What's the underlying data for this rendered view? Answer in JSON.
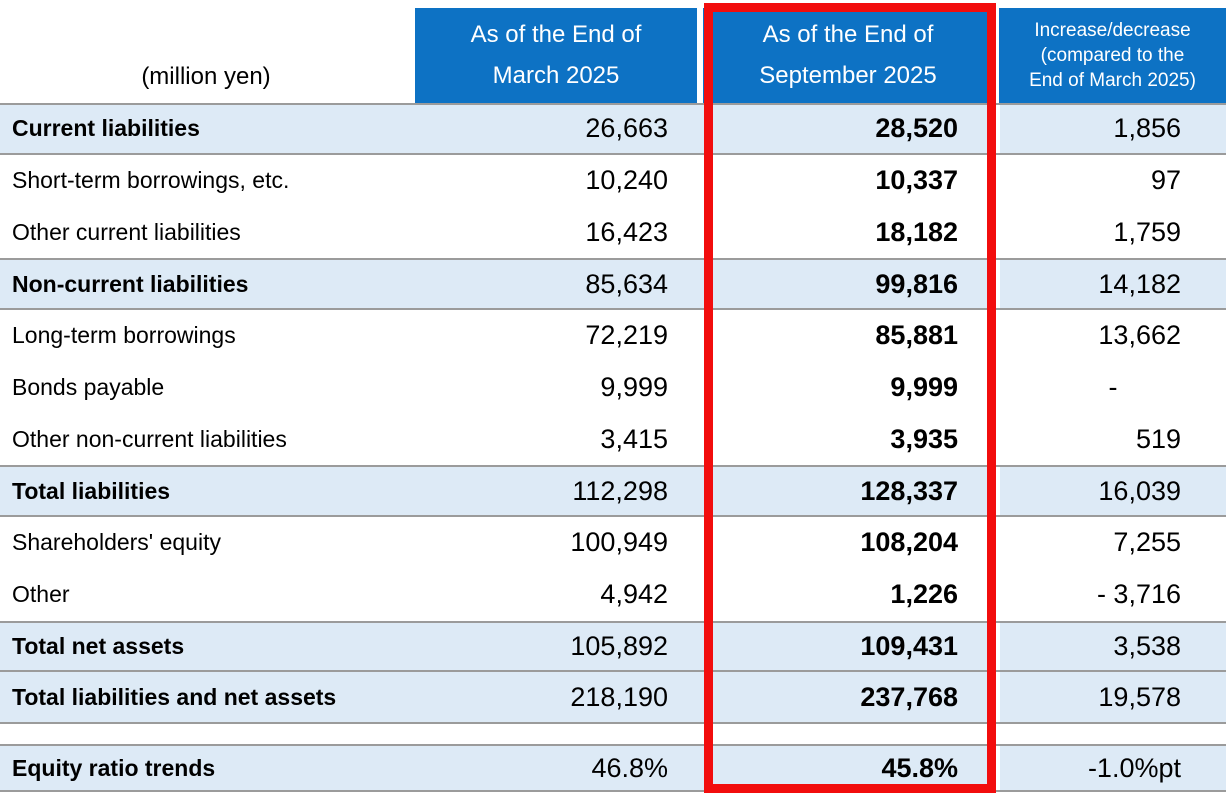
{
  "unit_label": "(million yen)",
  "columns": {
    "march": {
      "line1": "As of the End of",
      "line2": "March 2025"
    },
    "september": {
      "line1": "As of the End of",
      "line2": "September 2025"
    },
    "change": {
      "line1": "Increase/decrease",
      "line2": "(compared to the",
      "line3": "End of March 2025)"
    }
  },
  "rows": [
    {
      "label": "Current liabilities",
      "march": "26,663",
      "september": "28,520",
      "change": "1,856"
    },
    {
      "label": "Short-term borrowings, etc.",
      "march": "10,240",
      "september": "10,337",
      "change": "97"
    },
    {
      "label": "Other current liabilities",
      "march": "16,423",
      "september": "18,182",
      "change": "1,759"
    },
    {
      "label": "Non-current liabilities",
      "march": "85,634",
      "september": "99,816",
      "change": "14,182"
    },
    {
      "label": "Long-term borrowings",
      "march": "72,219",
      "september": "85,881",
      "change": "13,662"
    },
    {
      "label": "Bonds payable",
      "march": "9,999",
      "september": "9,999",
      "change": "-"
    },
    {
      "label": "Other non-current liabilities",
      "march": "3,415",
      "september": "3,935",
      "change": "519"
    },
    {
      "label": "Total liabilities",
      "march": "112,298",
      "september": "128,337",
      "change": "16,039"
    },
    {
      "label": "Shareholders' equity",
      "march": "100,949",
      "september": "108,204",
      "change": "7,255"
    },
    {
      "label": "Other",
      "march": "4,942",
      "september": "1,226",
      "change": "- 3,716"
    },
    {
      "label": "Total net assets",
      "march": "105,892",
      "september": "109,431",
      "change": "3,538"
    },
    {
      "label": "Total liabilities and net assets",
      "march": "218,190",
      "september": "237,768",
      "change": "19,578"
    }
  ],
  "equity_row": {
    "label": "Equity ratio trends",
    "march": "46.8%",
    "september": "45.8%",
    "change": "-1.0%pt"
  },
  "colors": {
    "header_blue": "#0D72C4",
    "row_highlight": "#DDEAF6",
    "border_gray": "#9B9B9B",
    "accent_red": "#F20D0D"
  }
}
